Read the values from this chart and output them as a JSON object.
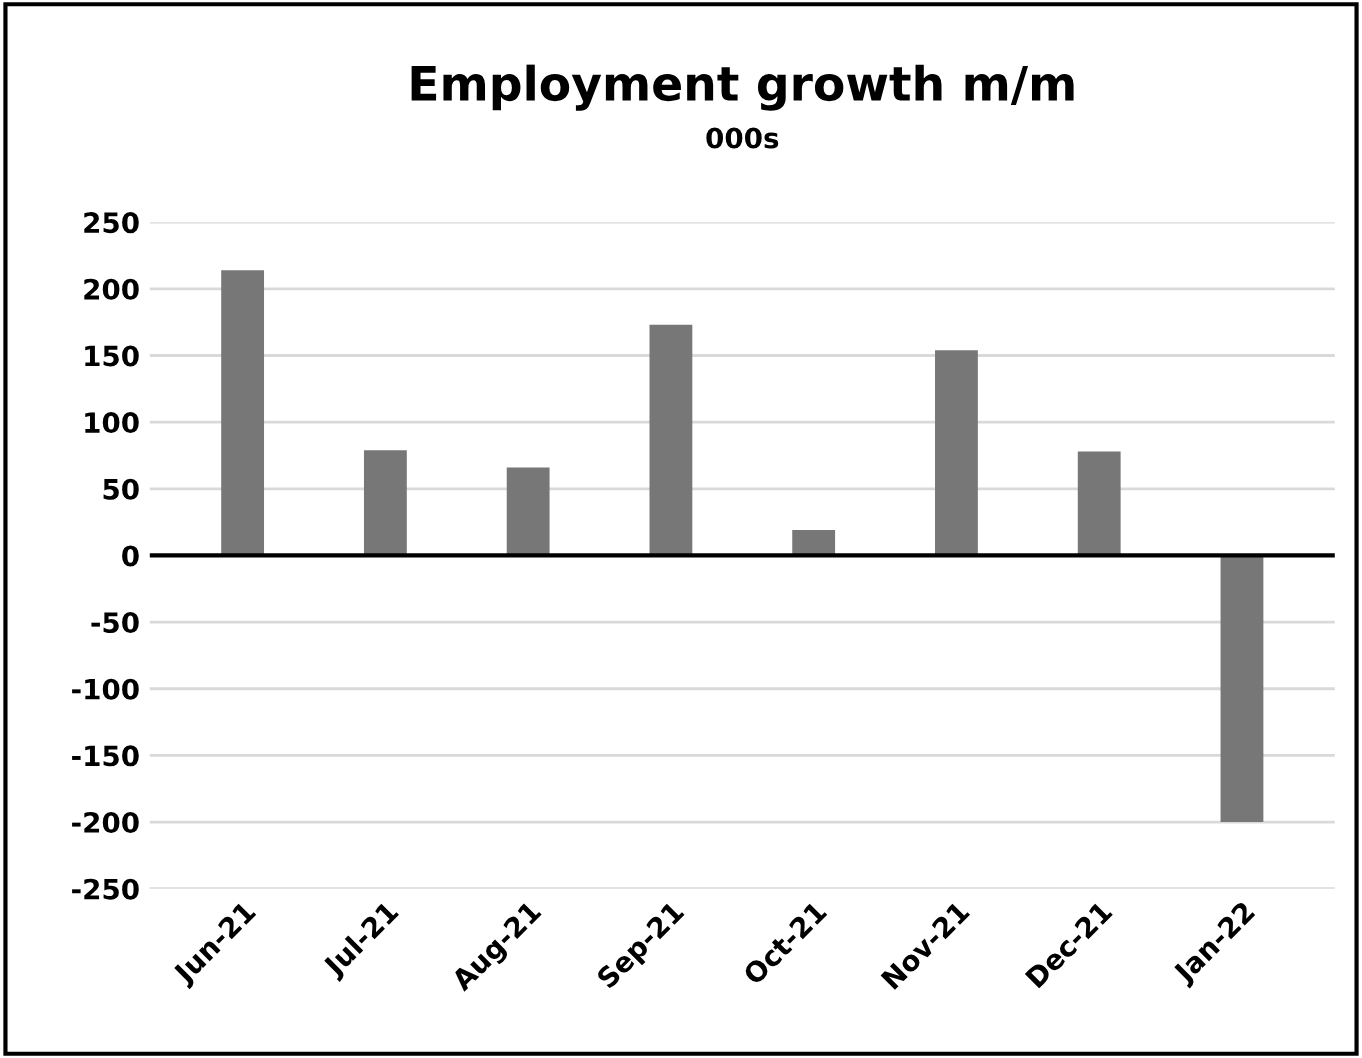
{
  "chart_data": {
    "type": "bar",
    "title": "Employment growth m/m",
    "subtitle": "000s",
    "categories": [
      "Jun-21",
      "Jul-21",
      "Aug-21",
      "Sep-21",
      "Oct-21",
      "Nov-21",
      "Dec-21",
      "Jan-22"
    ],
    "values": [
      214,
      79,
      66,
      173,
      19,
      154,
      78,
      -200
    ],
    "color": "#777777",
    "ylim": [
      -250,
      250
    ],
    "yticks": [
      -250,
      -200,
      -150,
      -100,
      -50,
      0,
      50,
      100,
      150,
      200,
      250
    ],
    "grid": "y",
    "legend": false
  }
}
